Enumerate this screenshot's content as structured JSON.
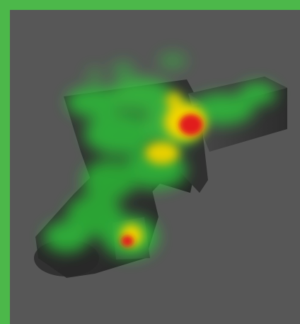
{
  "scene": {
    "frame_color": "#4cb84a",
    "background_color": "#575757",
    "object_shade_dark": "#2f2f2f",
    "object_shade_light": "#5a5a5a",
    "heat_colors": {
      "low": "#2fbf3a",
      "mid": "#f2d400",
      "high": "#e11a1a"
    },
    "icon": "heatmap-3d-shape-icon"
  }
}
